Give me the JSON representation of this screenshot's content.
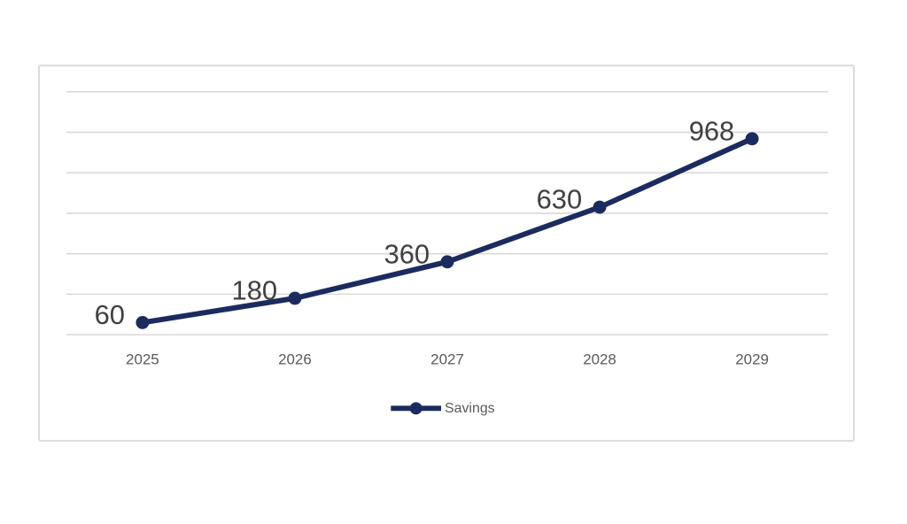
{
  "page": {
    "background": "#ffffff"
  },
  "chart_data": {
    "type": "line",
    "title": "",
    "xlabel": "",
    "ylabel": "",
    "categories": [
      "2025",
      "2026",
      "2027",
      "2028",
      "2029"
    ],
    "series": [
      {
        "name": "Savings",
        "values": [
          60,
          180,
          360,
          630,
          968
        ]
      }
    ],
    "data_labels": [
      "60",
      "180",
      "360",
      "630",
      "968"
    ],
    "ylim": [
      0,
      1200
    ],
    "grid_step": 200,
    "grid": true,
    "y_axis_labels_visible": false,
    "legend_position": "bottom",
    "legend_entries": [
      "Savings"
    ]
  },
  "colors": {
    "series": "#1c2b5f",
    "gridline": "#d9d9d9",
    "chart_border": "#dcdcdc",
    "data_label": "#404040",
    "axis_label": "#595959",
    "legend_label": "#595959",
    "background": "#ffffff"
  }
}
